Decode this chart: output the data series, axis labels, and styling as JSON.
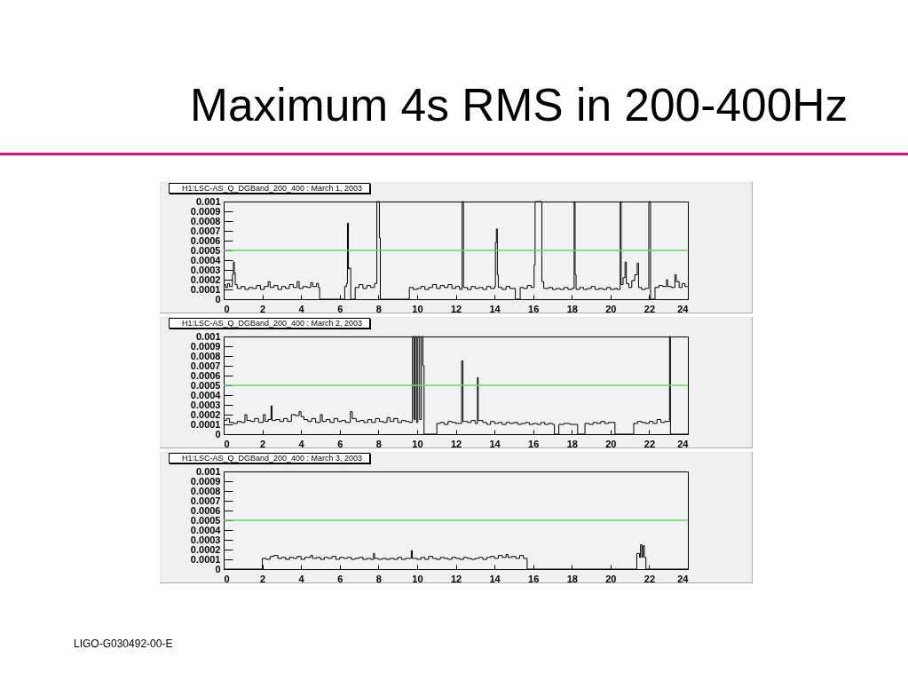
{
  "chart_data": [
    {
      "type": "step",
      "title": "Maximum 4s RMS in 200-400Hz",
      "subtitle": "H1:LSC-AS_Q_DGBand_200_400 : March 1, 2003",
      "xlim": [
        0,
        24
      ],
      "xticks": [
        0,
        2,
        4,
        6,
        8,
        10,
        12,
        14,
        16,
        18,
        20,
        22,
        24
      ],
      "ylim": [
        0,
        0.001
      ],
      "yticks": [
        0,
        0.0001,
        0.0002,
        0.0003,
        0.0004,
        0.0005,
        0.0006,
        0.0007,
        0.0008,
        0.0009,
        0.001
      ],
      "ref_lines": [
        {
          "axis": "y",
          "value": 0.0005,
          "color": "#66dd66"
        }
      ],
      "series": [
        {
          "color": "#000000",
          "x": [
            0,
            0.1,
            0.2,
            0.3,
            0.45,
            0.5,
            0.55,
            0.6,
            0.7,
            0.9,
            1.1,
            1.3,
            1.5,
            1.7,
            1.9,
            2.1,
            2.3,
            2.4,
            2.6,
            2.8,
            3,
            3.2,
            3.4,
            3.6,
            3.8,
            3.9,
            4.1,
            4.3,
            4.5,
            4.6,
            4.8,
            4.9,
            4.96,
            6.26,
            6.35,
            6.4,
            6.45,
            6.5,
            6.57,
            6.8,
            7,
            7.2,
            7.4,
            7.6,
            7.8,
            7.92,
            8.05,
            8.1,
            9.6,
            9.8,
            10,
            10.2,
            10.4,
            10.6,
            10.8,
            11,
            11.2,
            11.4,
            11.6,
            11.8,
            12,
            12.2,
            12.33,
            12.4,
            12.6,
            12.8,
            13,
            13.2,
            13.4,
            13.6,
            13.8,
            14,
            14.05,
            14.1,
            14.15,
            14.2,
            14.4,
            14.6,
            14.8,
            15.08,
            15.33,
            15.5,
            15.7,
            15.9,
            16.05,
            16.1,
            16.45,
            16.55,
            16.8,
            17,
            17.2,
            17.4,
            17.6,
            17.8,
            18,
            18.12,
            18.17,
            18.22,
            18.4,
            18.6,
            18.8,
            19,
            19.2,
            19.4,
            19.6,
            19.8,
            20,
            20.2,
            20.35,
            20.5,
            20.55,
            20.65,
            20.75,
            20.82,
            20.95,
            21.1,
            21.25,
            21.38,
            21.45,
            21.6,
            21.8,
            21.98,
            22.07,
            22.3,
            22.5,
            22.7,
            22.9,
            22.95,
            23.15,
            23.33,
            23.4,
            23.55,
            23.7,
            23.85,
            24
          ],
          "values": [
            0.00015,
            0.00012,
            0.00016,
            0.00013,
            0.00025,
            0.00038,
            0.00027,
            0.00015,
            0.00011,
            0.00013,
            0.0001,
            0.00012,
            0.00011,
            0.00014,
            0.0001,
            0.00013,
            0.00018,
            0.00012,
            0.00014,
            0.0001,
            0.00013,
            0.00011,
            0.00015,
            0.00012,
            0.00018,
            0.00011,
            0.00013,
            0.00012,
            0.00017,
            0.00013,
            0.00016,
            0.00012,
            0,
            0.00013,
            0.00016,
            0.00078,
            0.00031,
            0.00032,
            0,
            0.00012,
            0.00015,
            0.00011,
            0.00014,
            0.00012,
            0.00016,
            0.001,
            0.00063,
            0,
            0.00012,
            0.0001,
            0.00011,
            0.00013,
            0.0001,
            0.00012,
            0.00015,
            0.00011,
            0.00014,
            0.00012,
            0.00015,
            0.00011,
            0.00013,
            0.0001,
            0.001,
            0.00012,
            0.0001,
            0.00013,
            0.00011,
            0.00012,
            0.0001,
            0.00013,
            0.00011,
            0.00013,
            0.00058,
            0.00072,
            0.00025,
            0.00012,
            0.0001,
            0.00013,
            0.00011,
            0,
            0.00012,
            0.00011,
            0.00014,
            0.00012,
            0.00035,
            0.001,
            0.00018,
            0.00011,
            0.00012,
            0.0001,
            0.00011,
            0.0001,
            0.00012,
            0.0001,
            0.00011,
            0.001,
            0.00025,
            0.0001,
            0.00012,
            0.0001,
            0.00011,
            0.00013,
            0.0001,
            0.00011,
            0.0001,
            0.00012,
            0.0001,
            0.00011,
            0.0001,
            0.001,
            0.00015,
            0.00022,
            0.00038,
            0.00016,
            0.00012,
            0.00019,
            0.00025,
            0.00037,
            0.00012,
            0.0001,
            0.00011,
            0.001,
            0,
            0.00012,
            0.00014,
            0.00013,
            0.0002,
            0.00013,
            0.00012,
            0.00025,
            0.00018,
            0.00012,
            0.00016,
            0.00013,
            0.00013
          ]
        }
      ]
    },
    {
      "type": "step",
      "subtitle": "H1:LSC-AS_Q_DGBand_200_400 : March 2, 2003",
      "xlim": [
        0,
        24
      ],
      "xticks": [
        0,
        2,
        4,
        6,
        8,
        10,
        12,
        14,
        16,
        18,
        20,
        22,
        24
      ],
      "ylim": [
        0,
        0.001
      ],
      "yticks": [
        0,
        0.0001,
        0.0002,
        0.0003,
        0.0004,
        0.0005,
        0.0006,
        0.0007,
        0.0008,
        0.0009,
        0.001
      ],
      "ref_lines": [
        {
          "axis": "y",
          "value": 0.0005,
          "color": "#66dd66"
        }
      ],
      "series": [
        {
          "color": "#000000",
          "x": [
            0,
            0.15,
            0.3,
            0.5,
            0.7,
            0.9,
            1.1,
            1.2,
            1.4,
            1.6,
            1.8,
            2.05,
            2.15,
            2.3,
            2.45,
            2.5,
            2.7,
            2.9,
            3.1,
            3.3,
            3.5,
            3.7,
            3.9,
            4,
            4.15,
            4.35,
            4.55,
            4.75,
            5,
            5.1,
            5.3,
            5.5,
            5.7,
            5.9,
            6.1,
            6.3,
            6.55,
            6.65,
            6.85,
            7.05,
            7.25,
            7.45,
            7.65,
            7.85,
            8.05,
            8.25,
            8.45,
            8.6,
            8.8,
            9,
            9.2,
            9.4,
            9.6,
            9.76,
            9.84,
            9.9,
            9.97,
            10.04,
            10.13,
            10.22,
            10.3,
            10.36,
            11.02,
            11.2,
            11.4,
            11.6,
            11.8,
            12,
            12.3,
            12.37,
            12.6,
            12.8,
            13,
            13.12,
            13.16,
            13.4,
            13.6,
            13.8,
            14,
            14.2,
            14.4,
            14.6,
            14.8,
            15,
            15.2,
            15.4,
            15.6,
            15.8,
            16,
            16.2,
            16.4,
            16.6,
            16.8,
            17,
            17.1,
            17.33,
            17.6,
            17.9,
            18.3,
            18.68,
            18.9,
            19.1,
            19.3,
            19.5,
            19.7,
            19.9,
            20.23,
            21.2,
            21.4,
            21.6,
            21.8,
            22,
            22.2,
            22.4,
            22.6,
            22.8,
            23.05,
            23.1,
            24
          ],
          "values": [
            0.00014,
            0.00016,
            0.00012,
            0.00011,
            0.00013,
            0.00012,
            0.0002,
            0.00014,
            0.00013,
            0.00016,
            0.00012,
            0.0002,
            0.00013,
            0.00015,
            0.00029,
            0.00014,
            0.00015,
            0.00013,
            0.00016,
            0.00013,
            0.0002,
            0.00019,
            0.00023,
            0.00018,
            0.00015,
            0.00013,
            0.00016,
            0.00012,
            0.0002,
            0.00013,
            0.00015,
            0.00012,
            0.00016,
            0.00013,
            0.00014,
            0.00012,
            0.00023,
            0.00016,
            0.00013,
            0.00014,
            0.00012,
            0.00015,
            0.00012,
            0.00016,
            0.00013,
            0.00012,
            0.00017,
            0.00013,
            0.00016,
            0.00012,
            0.00014,
            0.00013,
            0.00012,
            0.001,
            0.00015,
            0.001,
            0.00012,
            0.001,
            0.00015,
            0.001,
            0.0007,
            0,
            0.00011,
            0.00012,
            0.0001,
            0.00013,
            0.00012,
            0.00011,
            0.00075,
            0.00013,
            0.00012,
            0.00014,
            0.00011,
            0.00058,
            0.00014,
            0.00012,
            0.0001,
            0.00013,
            0.00011,
            0.00012,
            0.0001,
            0.00012,
            0.00011,
            0.00012,
            0.0001,
            0.00011,
            0.00012,
            0.0001,
            0.00011,
            0.0001,
            0.00012,
            0.0001,
            0.00011,
            0.0001,
            0,
            0.0001,
            0.00011,
            0.0001,
            0,
            0.00011,
            0.0001,
            0.00012,
            0.00011,
            0.00013,
            0.00011,
            0.00012,
            0,
            0.00011,
            0.00013,
            0.00012,
            0.00011,
            0.00013,
            0.00011,
            0.00015,
            0.00012,
            0.00013,
            0.001,
            0,
            0
          ]
        }
      ]
    },
    {
      "type": "step",
      "subtitle": "H1:LSC-AS_Q_DGBand_200_400 : March 3, 2003",
      "xlim": [
        0,
        24
      ],
      "xticks": [
        0,
        2,
        4,
        6,
        8,
        10,
        12,
        14,
        16,
        18,
        20,
        22,
        24
      ],
      "ylim": [
        0,
        0.001
      ],
      "yticks": [
        0,
        0.0001,
        0.0002,
        0.0003,
        0.0004,
        0.0005,
        0.0006,
        0.0007,
        0.0008,
        0.0009,
        0.001
      ],
      "ref_lines": [
        {
          "axis": "y",
          "value": 0.0005,
          "color": "#66dd66"
        }
      ],
      "annotations": [
        "LIGO-G030492-00-E"
      ],
      "series": [
        {
          "color": "#000000",
          "x": [
            0,
            2,
            2.2,
            2.4,
            2.6,
            2.8,
            3,
            3.2,
            3.4,
            3.6,
            3.8,
            4,
            4.2,
            4.5,
            4.6,
            4.8,
            5,
            5.2,
            5.4,
            5.6,
            5.8,
            6,
            6.2,
            6.4,
            6.6,
            6.8,
            7,
            7.2,
            7.4,
            7.6,
            7.75,
            7.8,
            8,
            8.2,
            8.4,
            8.6,
            8.8,
            9,
            9.2,
            9.4,
            9.7,
            9.75,
            10,
            10.2,
            10.4,
            10.6,
            10.8,
            11,
            11.2,
            11.4,
            11.6,
            11.8,
            12,
            12.2,
            12.4,
            12.6,
            12.8,
            13,
            13.2,
            13.4,
            13.6,
            13.8,
            14,
            14.2,
            14.4,
            14.6,
            14.7,
            14.9,
            15.1,
            15.3,
            15.5,
            15.69,
            21.36,
            21.5,
            21.55,
            21.62,
            21.68,
            21.75,
            21.83,
            24
          ],
          "values": [
            0,
            0.00011,
            0.0001,
            0.00013,
            0.00014,
            0.00011,
            0.00012,
            0.0001,
            0.00012,
            0.00011,
            0.00013,
            0.0001,
            0.00012,
            0.00014,
            0.00011,
            0.00012,
            0.0001,
            0.00012,
            0.00011,
            0.00013,
            0.0001,
            0.00012,
            0.00011,
            0.00012,
            0.0001,
            0.00011,
            0.00012,
            0.0001,
            0.00011,
            0.0001,
            0.00016,
            0.00011,
            0.0001,
            0.00011,
            0.0001,
            0.00011,
            0.0001,
            0.00012,
            0.0001,
            0.00011,
            0.00019,
            0.00011,
            0.0001,
            0.00012,
            0.0001,
            0.00013,
            0.00011,
            0.0001,
            0.00012,
            0.00011,
            0.0001,
            0.00012,
            0.00011,
            0.0001,
            0.00012,
            0.00011,
            0.0001,
            0.00011,
            0.00012,
            0.0001,
            0.00012,
            0.00013,
            0.00011,
            0.00014,
            0.00012,
            0.00015,
            0.00012,
            0.00013,
            0.00011,
            0.00014,
            0.00011,
            0,
            0.00016,
            0.00012,
            0.00025,
            0.00012,
            0.00024,
            0.00012,
            0,
            0
          ]
        }
      ]
    }
  ]
}
